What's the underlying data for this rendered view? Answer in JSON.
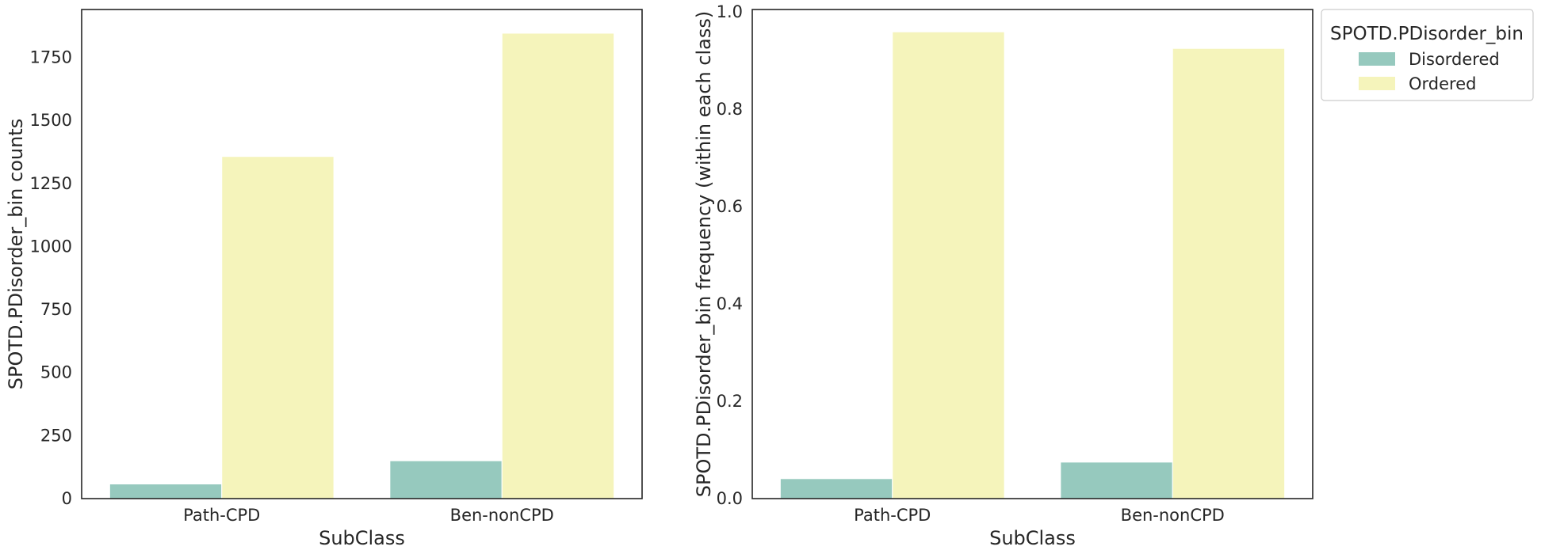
{
  "chart_data": [
    {
      "type": "bar",
      "xlabel": "SubClass",
      "ylabel": "SPOTD.PDisorder_bin counts",
      "categories": [
        "Path-CPD",
        "Ben-nonCPD"
      ],
      "series": [
        {
          "name": "Disordered",
          "values": [
            58,
            150
          ]
        },
        {
          "name": "Ordered",
          "values": [
            1357,
            1846
          ]
        }
      ],
      "ylim": [
        0,
        1940
      ],
      "yticks": [
        0,
        250,
        500,
        750,
        1000,
        1250,
        1500,
        1750
      ],
      "grid": false
    },
    {
      "type": "bar",
      "xlabel": "SubClass",
      "ylabel": "SPOTD.PDisorder_bin frequency (within each class)",
      "categories": [
        "Path-CPD",
        "Ben-nonCPD"
      ],
      "series": [
        {
          "name": "Disordered",
          "values": [
            0.041,
            0.075
          ]
        },
        {
          "name": "Ordered",
          "values": [
            0.959,
            0.925
          ]
        }
      ],
      "ylim": [
        0,
        1.005
      ],
      "yticks": [
        "0.0",
        "0.2",
        "0.4",
        "0.6",
        "0.8",
        "1.0"
      ],
      "grid": false
    }
  ],
  "legend": {
    "title": "SPOTD.PDisorder_bin",
    "entries": [
      "Disordered",
      "Ordered"
    ],
    "placement": "outside-top-right"
  },
  "colors": {
    "Disordered": "#96c9be",
    "Ordered": "#f5f4bb",
    "axes": "#262626"
  }
}
